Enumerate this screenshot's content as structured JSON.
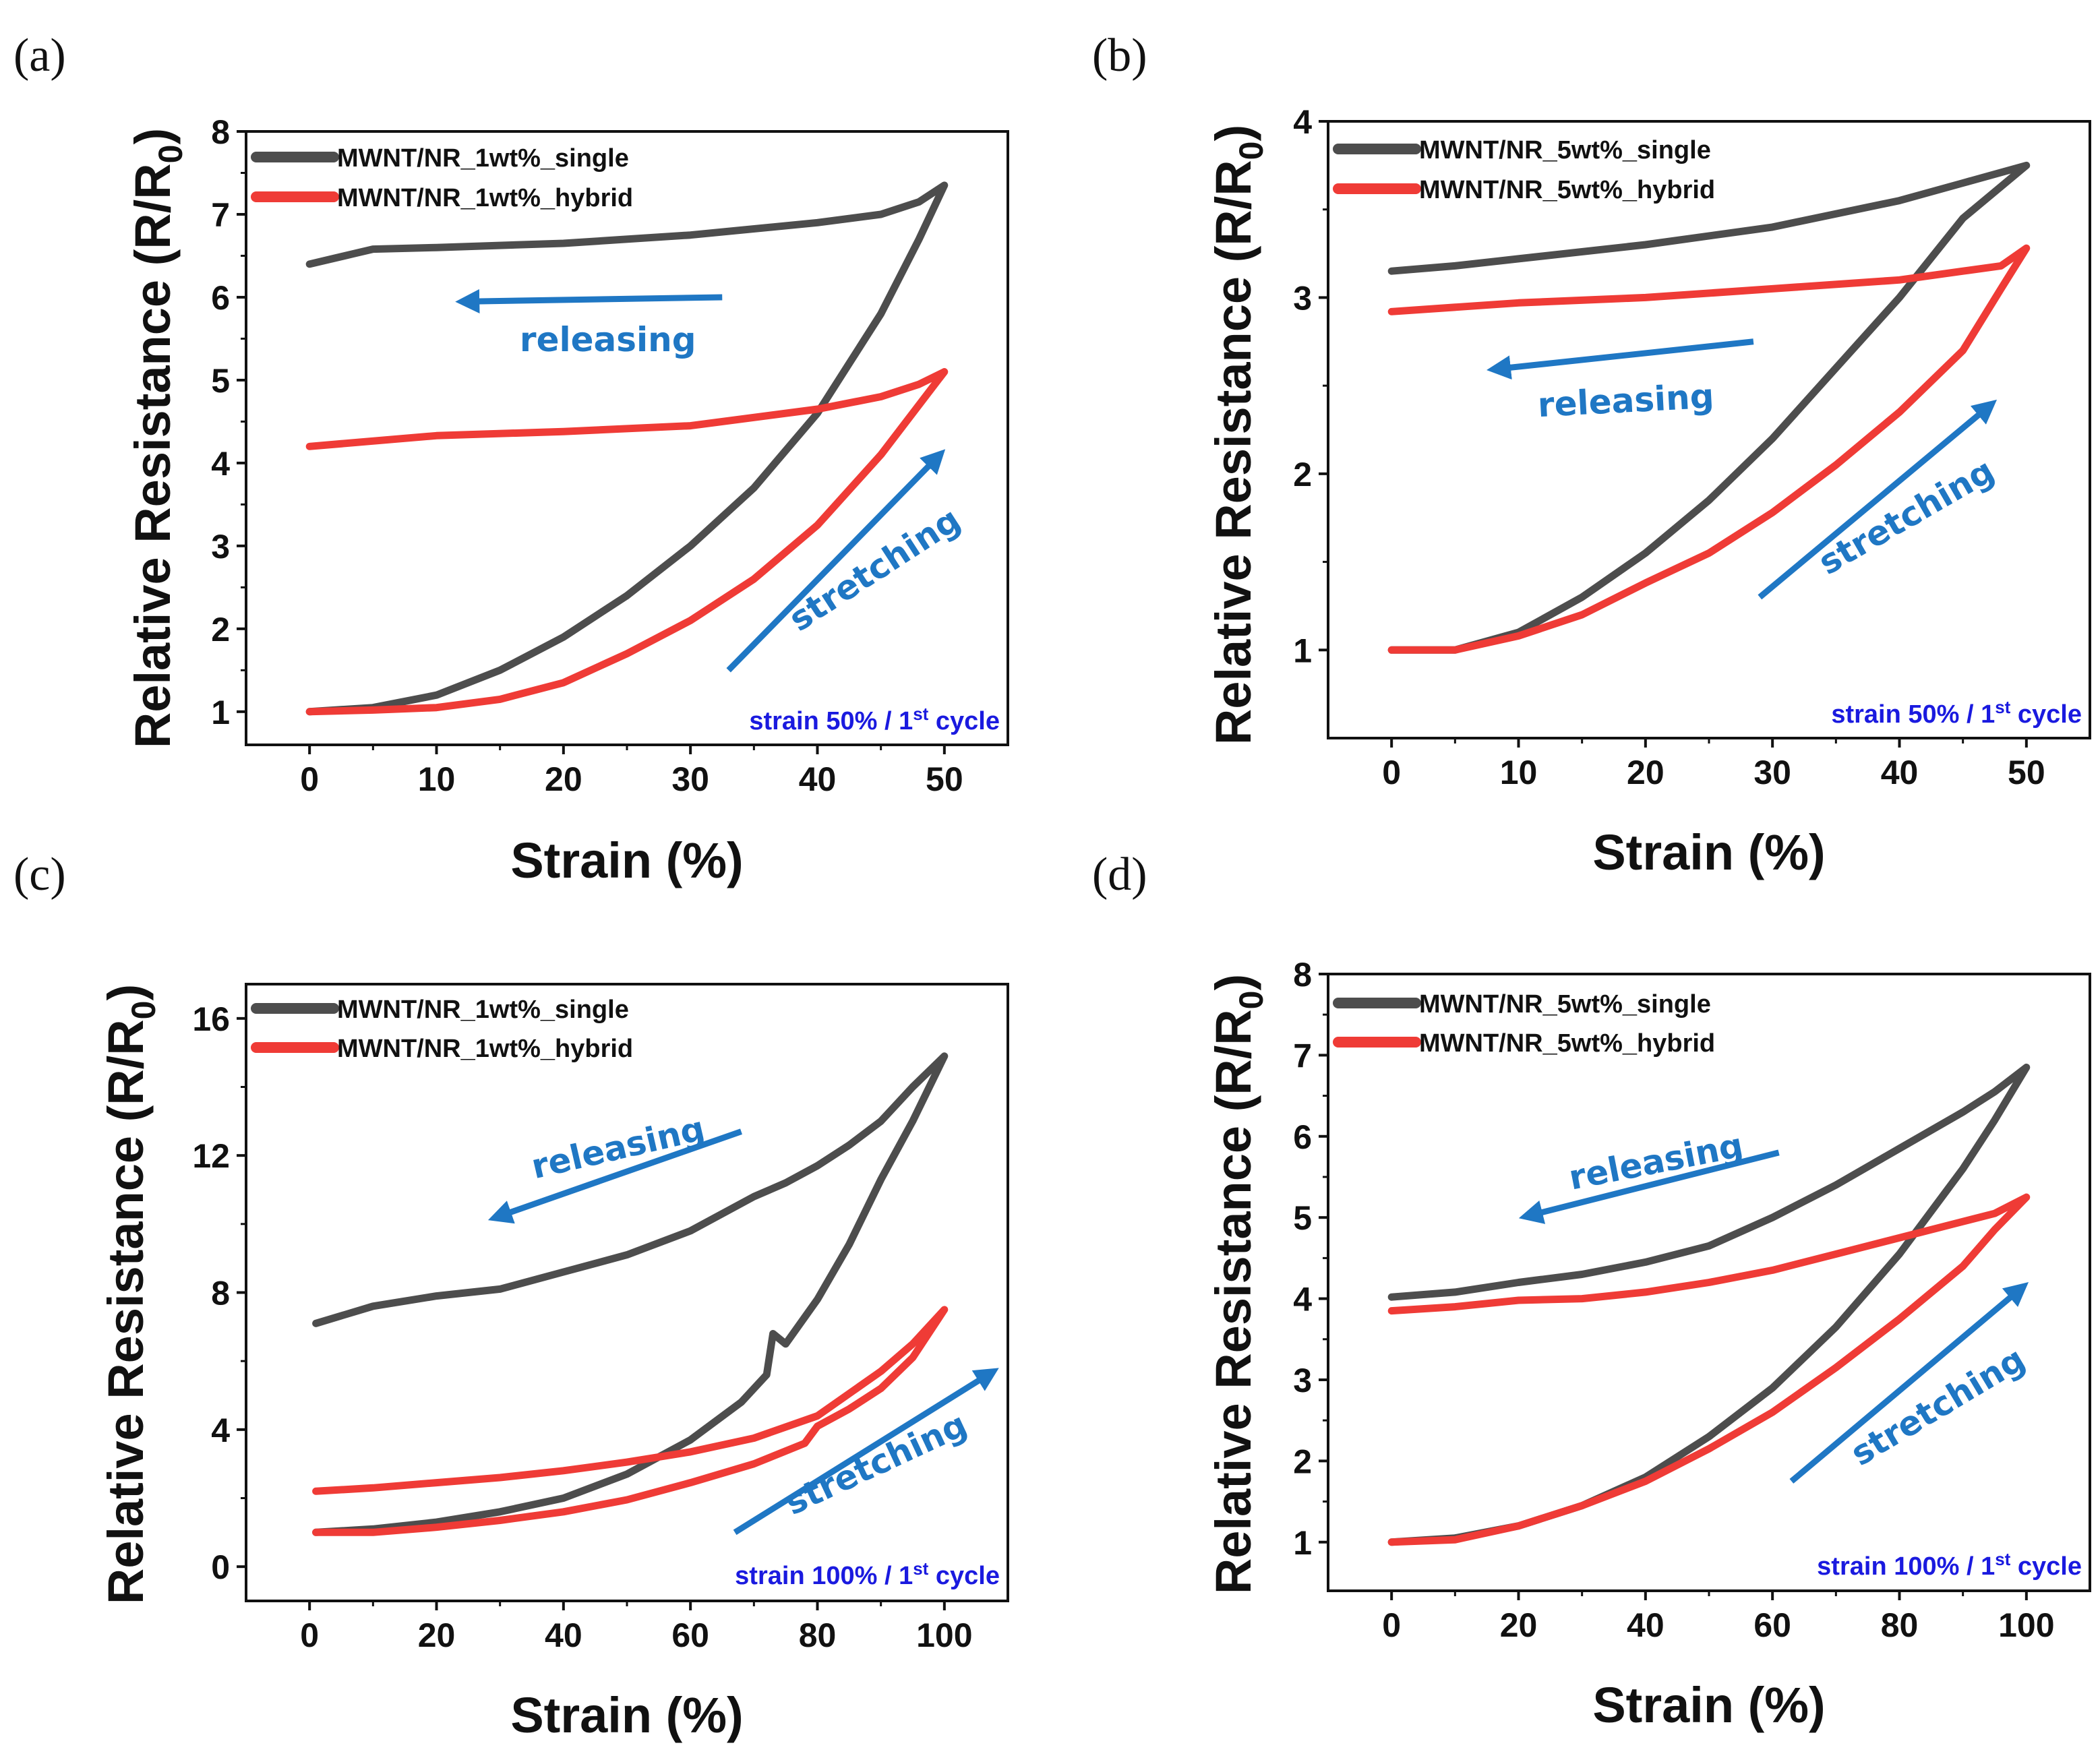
{
  "figure": {
    "colors": {
      "single": "#4d4d4d",
      "hybrid": "#ef3b36",
      "arrow": "#1f77c4",
      "note": "#1a1adf"
    }
  },
  "chart_data": [
    {
      "type": "line",
      "panel_label": "(a)",
      "xlabel": "Strain (%)",
      "ylabel": "Relative Resistance (R/R",
      "ylabel_sub": "0",
      "ylabel_close": ")",
      "xlim": [
        -5,
        55
      ],
      "ylim": [
        0.6,
        8
      ],
      "xticks": [
        0,
        10,
        20,
        30,
        40,
        50
      ],
      "yticks": [
        1,
        2,
        3,
        4,
        5,
        6,
        7,
        8
      ],
      "legend": [
        "MWNT/NR_1wt%_single",
        "MWNT/NR_1wt%_hybrid"
      ],
      "note": {
        "main": "strain 50% / 1",
        "sup": "st",
        "tail": " cycle"
      },
      "series": [
        {
          "name": "MWNT/NR_1wt%_single",
          "color": "#4d4d4d",
          "x": [
            0,
            5,
            10,
            15,
            20,
            25,
            30,
            35,
            40,
            45,
            48,
            50,
            48,
            45,
            40,
            30,
            20,
            10,
            5,
            0
          ],
          "y": [
            1.0,
            1.05,
            1.2,
            1.5,
            1.9,
            2.4,
            3.0,
            3.7,
            4.6,
            5.8,
            6.7,
            7.35,
            7.15,
            7.0,
            6.9,
            6.75,
            6.65,
            6.6,
            6.58,
            6.4
          ]
        },
        {
          "name": "MWNT/NR_1wt%_hybrid",
          "color": "#ef3b36",
          "x": [
            0,
            5,
            10,
            15,
            20,
            25,
            30,
            35,
            40,
            45,
            50,
            48,
            45,
            40,
            30,
            20,
            10,
            0
          ],
          "y": [
            1.0,
            1.02,
            1.05,
            1.15,
            1.35,
            1.7,
            2.1,
            2.6,
            3.25,
            4.1,
            5.1,
            4.95,
            4.8,
            4.65,
            4.45,
            4.38,
            4.33,
            4.2
          ]
        }
      ],
      "annotations": [
        {
          "text": "releasing",
          "x0": 32.5,
          "y0": 6.0,
          "x1": 13,
          "y1": 5.95,
          "tx": 23.5,
          "ty": 5.35,
          "angle": 0
        },
        {
          "text": "stretching",
          "x0": 33,
          "y0": 1.5,
          "x1": 49,
          "y1": 4.0,
          "tx": 45,
          "ty": 2.6,
          "angle": -33
        }
      ]
    },
    {
      "type": "line",
      "panel_label": "(b)",
      "xlabel": "Strain (%)",
      "ylabel": "Relative Resistance (R/R",
      "ylabel_sub": "0",
      "ylabel_close": ")",
      "xlim": [
        -5,
        55
      ],
      "ylim": [
        0.5,
        4
      ],
      "xticks": [
        0,
        10,
        20,
        30,
        40,
        50
      ],
      "yticks": [
        1,
        2,
        3,
        4
      ],
      "legend": [
        "MWNT/NR_5wt%_single",
        "MWNT/NR_5wt%_hybrid"
      ],
      "note": {
        "main": "strain 50% / 1",
        "sup": "st",
        "tail": " cycle"
      },
      "series": [
        {
          "name": "MWNT/NR_5wt%_single",
          "color": "#4d4d4d",
          "x": [
            0,
            5,
            10,
            15,
            20,
            25,
            30,
            35,
            40,
            45,
            50,
            45,
            40,
            30,
            20,
            10,
            5,
            0
          ],
          "y": [
            1.0,
            1.0,
            1.1,
            1.3,
            1.55,
            1.85,
            2.2,
            2.6,
            3.0,
            3.45,
            3.75,
            3.65,
            3.55,
            3.4,
            3.3,
            3.22,
            3.18,
            3.15
          ]
        },
        {
          "name": "MWNT/NR_5wt%_hybrid",
          "color": "#ef3b36",
          "x": [
            0,
            5,
            10,
            15,
            20,
            25,
            30,
            35,
            40,
            45,
            48,
            50,
            48,
            45,
            40,
            30,
            20,
            10,
            0
          ],
          "y": [
            1.0,
            1.0,
            1.08,
            1.2,
            1.38,
            1.55,
            1.78,
            2.05,
            2.35,
            2.7,
            3.05,
            3.28,
            3.18,
            3.15,
            3.1,
            3.05,
            3.0,
            2.97,
            2.92
          ]
        }
      ],
      "annotations": [
        {
          "text": "releasing",
          "x0": 28.5,
          "y0": 2.75,
          "x1": 9,
          "y1": 2.6,
          "tx": 18.5,
          "ty": 2.35,
          "angle": -3
        },
        {
          "text": "stretching",
          "x0": 29,
          "y0": 1.3,
          "x1": 46.5,
          "y1": 2.35,
          "tx": 41,
          "ty": 1.7,
          "angle": -30
        }
      ]
    },
    {
      "type": "line",
      "panel_label": "(c)",
      "xlabel": "Strain (%)",
      "ylabel": "Relative Resistance (R/R",
      "ylabel_sub": "0",
      "ylabel_close": ")",
      "xlim": [
        -10,
        110
      ],
      "ylim": [
        -1,
        17
      ],
      "xticks": [
        0,
        20,
        40,
        60,
        80,
        100
      ],
      "yticks": [
        0,
        4,
        8,
        12,
        16
      ],
      "legend": [
        "MWNT/NR_1wt%_single",
        "MWNT/NR_1wt%_hybrid"
      ],
      "note": {
        "main": "strain 100% / 1",
        "sup": "st",
        "tail": " cycle"
      },
      "series": [
        {
          "name": "MWNT/NR_1wt%_single",
          "color": "#4d4d4d",
          "x": [
            1,
            10,
            20,
            30,
            40,
            50,
            60,
            68,
            72,
            73,
            75,
            80,
            85,
            90,
            95,
            100,
            95,
            90,
            85,
            80,
            75,
            70,
            60,
            50,
            40,
            30,
            20,
            10,
            1
          ],
          "y": [
            1.0,
            1.1,
            1.3,
            1.6,
            2.0,
            2.7,
            3.7,
            4.8,
            5.6,
            6.8,
            6.5,
            7.8,
            9.4,
            11.3,
            13.0,
            14.9,
            14.0,
            13.0,
            12.3,
            11.7,
            11.2,
            10.8,
            9.8,
            9.1,
            8.6,
            8.1,
            7.9,
            7.6,
            7.1
          ]
        },
        {
          "name": "MWNT/NR_1wt%_hybrid",
          "color": "#ef3b36",
          "x": [
            1,
            10,
            20,
            30,
            40,
            50,
            60,
            70,
            78,
            80,
            85,
            90,
            95,
            100,
            95,
            90,
            80,
            70,
            60,
            50,
            40,
            30,
            20,
            10,
            1
          ],
          "y": [
            1.0,
            1.0,
            1.15,
            1.35,
            1.6,
            1.95,
            2.45,
            3.0,
            3.6,
            4.1,
            4.6,
            5.2,
            6.1,
            7.5,
            6.5,
            5.7,
            4.4,
            3.75,
            3.35,
            3.05,
            2.8,
            2.6,
            2.45,
            2.3,
            2.2
          ]
        }
      ],
      "annotations": [
        {
          "text": "releasing",
          "x0": 68,
          "y0": 12.7,
          "x1": 31,
          "y1": 10.3,
          "tx": 49,
          "ty": 11.9,
          "angle": -13
        },
        {
          "text": "stretching",
          "x0": 67,
          "y0": 1.0,
          "x1": 106,
          "y1": 5.5,
          "tx": 90,
          "ty": 2.7,
          "angle": -25
        }
      ]
    },
    {
      "type": "line",
      "panel_label": "(d)",
      "xlabel": "Strain (%)",
      "ylabel": "Relative Resistance (R/R",
      "ylabel_sub": "0",
      "ylabel_close": ")",
      "xlim": [
        -10,
        110
      ],
      "ylim": [
        0.4,
        8
      ],
      "xticks": [
        0,
        20,
        40,
        60,
        80,
        100
      ],
      "yticks": [
        1,
        2,
        3,
        4,
        5,
        6,
        7,
        8
      ],
      "legend": [
        "MWNT/NR_5wt%_single",
        "MWNT/NR_5wt%_hybrid"
      ],
      "note": {
        "main": "strain 100% / 1",
        "sup": "st",
        "tail": " cycle"
      },
      "series": [
        {
          "name": "MWNT/NR_5wt%_single",
          "color": "#4d4d4d",
          "x": [
            0,
            10,
            20,
            30,
            40,
            50,
            60,
            70,
            80,
            90,
            95,
            100,
            95,
            90,
            80,
            70,
            60,
            50,
            40,
            30,
            20,
            10,
            0
          ],
          "y": [
            1.0,
            1.05,
            1.2,
            1.45,
            1.8,
            2.3,
            2.9,
            3.65,
            4.55,
            5.6,
            6.2,
            6.85,
            6.55,
            6.3,
            5.85,
            5.4,
            5.0,
            4.65,
            4.45,
            4.3,
            4.2,
            4.08,
            4.02
          ]
        },
        {
          "name": "MWNT/NR_5wt%_hybrid",
          "color": "#ef3b36",
          "x": [
            0,
            10,
            20,
            30,
            40,
            50,
            60,
            70,
            80,
            90,
            95,
            100,
            95,
            90,
            80,
            70,
            60,
            50,
            40,
            30,
            20,
            10,
            0
          ],
          "y": [
            1.0,
            1.03,
            1.2,
            1.45,
            1.75,
            2.15,
            2.6,
            3.15,
            3.75,
            4.4,
            4.85,
            5.25,
            5.05,
            4.95,
            4.75,
            4.55,
            4.35,
            4.2,
            4.08,
            4.0,
            3.98,
            3.9,
            3.85
          ]
        }
      ],
      "annotations": [
        {
          "text": "releasing",
          "x0": 61,
          "y0": 5.8,
          "x1": 23,
          "y1": 5.05,
          "tx": 42,
          "ty": 5.55,
          "angle": -11
        },
        {
          "text": "stretching",
          "x0": 63,
          "y0": 1.75,
          "x1": 98,
          "y1": 4.05,
          "tx": 87,
          "ty": 2.55,
          "angle": -31
        }
      ]
    }
  ]
}
